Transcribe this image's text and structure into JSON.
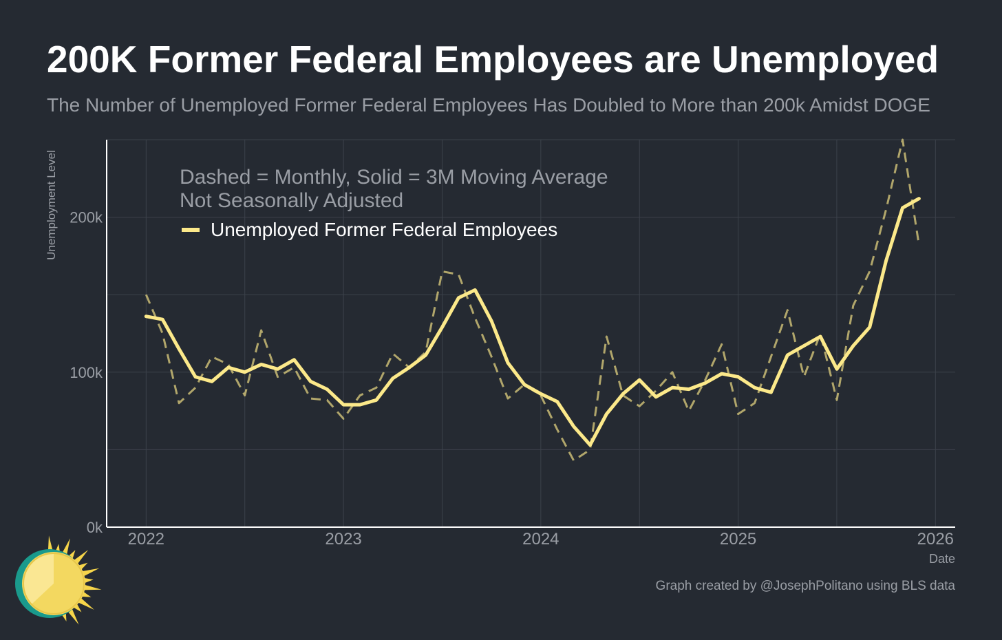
{
  "title": "200K Former Federal Employees are Unemployed",
  "subtitle": "The Number of Unemployed Former Federal Employees Has Doubled to More than 200k Amidst DOGE",
  "credit": "Graph created by @JosephPolitano using BLS data",
  "colors": {
    "background": "#252a32",
    "line": "#fce98a",
    "grid": "#3c424b",
    "axis": "#ffffff",
    "muted_text": "#9a9ea5"
  },
  "chart_data": {
    "type": "line",
    "xlabel": "Date",
    "ylabel": "Unemployment Level",
    "xlim": [
      2021.8,
      2026.1
    ],
    "ylim": [
      0,
      250000
    ],
    "x_ticks": [
      2022,
      2023,
      2024,
      2025,
      2026
    ],
    "x_tick_labels": [
      "2022",
      "2023",
      "2024",
      "2025",
      "2026"
    ],
    "y_ticks": [
      0,
      100000,
      200000
    ],
    "y_tick_labels": [
      "0k",
      "100k",
      "200k"
    ],
    "annotation": [
      "Dashed = Monthly, Solid = 3M Moving Average",
      "Not Seasonally Adjusted"
    ],
    "legend": [
      {
        "label": "Unemployed Former Federal Employees",
        "color": "#fce98a"
      }
    ],
    "legend_position": "top-left",
    "grid": true,
    "series": [
      {
        "name": "Monthly",
        "style": "dashed",
        "x_start": 2022,
        "step_months": 1,
        "values": [
          150000,
          125000,
          80000,
          90000,
          110000,
          105000,
          85000,
          127000,
          97000,
          103000,
          83000,
          82000,
          70000,
          85000,
          90000,
          112000,
          103000,
          113000,
          165000,
          163000,
          135000,
          110000,
          83000,
          92000,
          85000,
          63000,
          43000,
          50000,
          123000,
          85000,
          78000,
          88000,
          100000,
          75000,
          95000,
          118000,
          73000,
          80000,
          110000,
          140000,
          97000,
          125000,
          82000,
          143000,
          165000,
          205000,
          250000,
          182000
        ]
      },
      {
        "name": "3M Moving Average",
        "style": "solid",
        "x_start": 2022,
        "step_months": 1,
        "values": [
          136000,
          134000,
          115000,
          97000,
          94000,
          103000,
          100000,
          105000,
          102000,
          108000,
          94000,
          89000,
          79000,
          79000,
          82000,
          96000,
          103000,
          111000,
          129000,
          148000,
          153000,
          133000,
          106000,
          92000,
          86000,
          81000,
          65000,
          53000,
          73000,
          86000,
          95000,
          84000,
          90000,
          89000,
          93000,
          99000,
          97000,
          90000,
          87000,
          111000,
          117000,
          123000,
          102000,
          117000,
          129000,
          172000,
          206000,
          212000
        ]
      }
    ]
  }
}
